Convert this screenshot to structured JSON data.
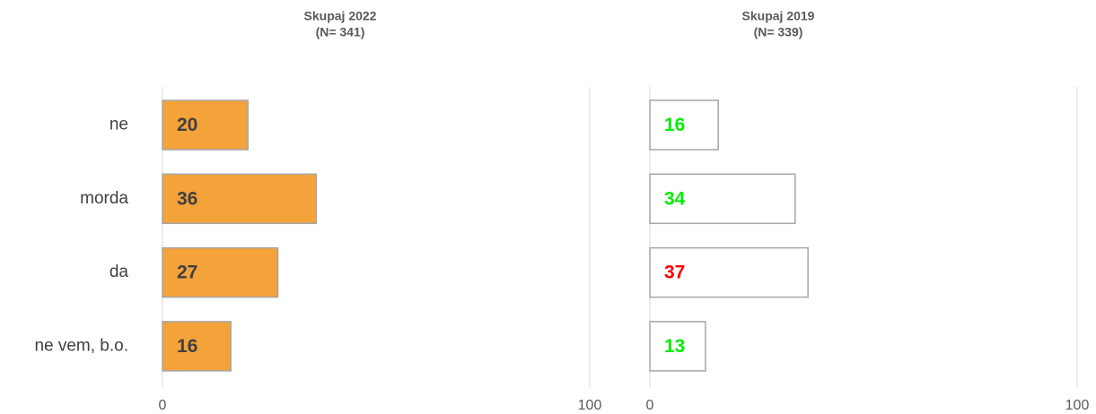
{
  "chart_data": [
    {
      "type": "bar",
      "orientation": "horizontal",
      "title": "Skupaj 2022",
      "subtitle": "(N= 341)",
      "categories": [
        "ne",
        "morda",
        "da",
        "ne vem, b.o."
      ],
      "values": [
        20,
        36,
        27,
        16
      ],
      "color": "#f4a23a",
      "edge_color": "#a6a6a6",
      "label_colors": [
        "#404040",
        "#404040",
        "#404040",
        "#404040"
      ],
      "xlim": [
        0,
        100
      ],
      "xticks": [
        0,
        100
      ],
      "grid": true
    },
    {
      "type": "bar",
      "orientation": "horizontal",
      "title": "Skupaj 2019",
      "subtitle": "(N= 339)",
      "values": [
        16,
        34,
        37,
        13
      ],
      "color": "#ffffff",
      "edge_color": "#a6a6a6",
      "label_colors": [
        "#00ee00",
        "#00ee00",
        "#ff0000",
        "#00ee00"
      ],
      "xlim": [
        0,
        100
      ],
      "xticks": [
        0,
        100
      ],
      "grid": true
    }
  ]
}
